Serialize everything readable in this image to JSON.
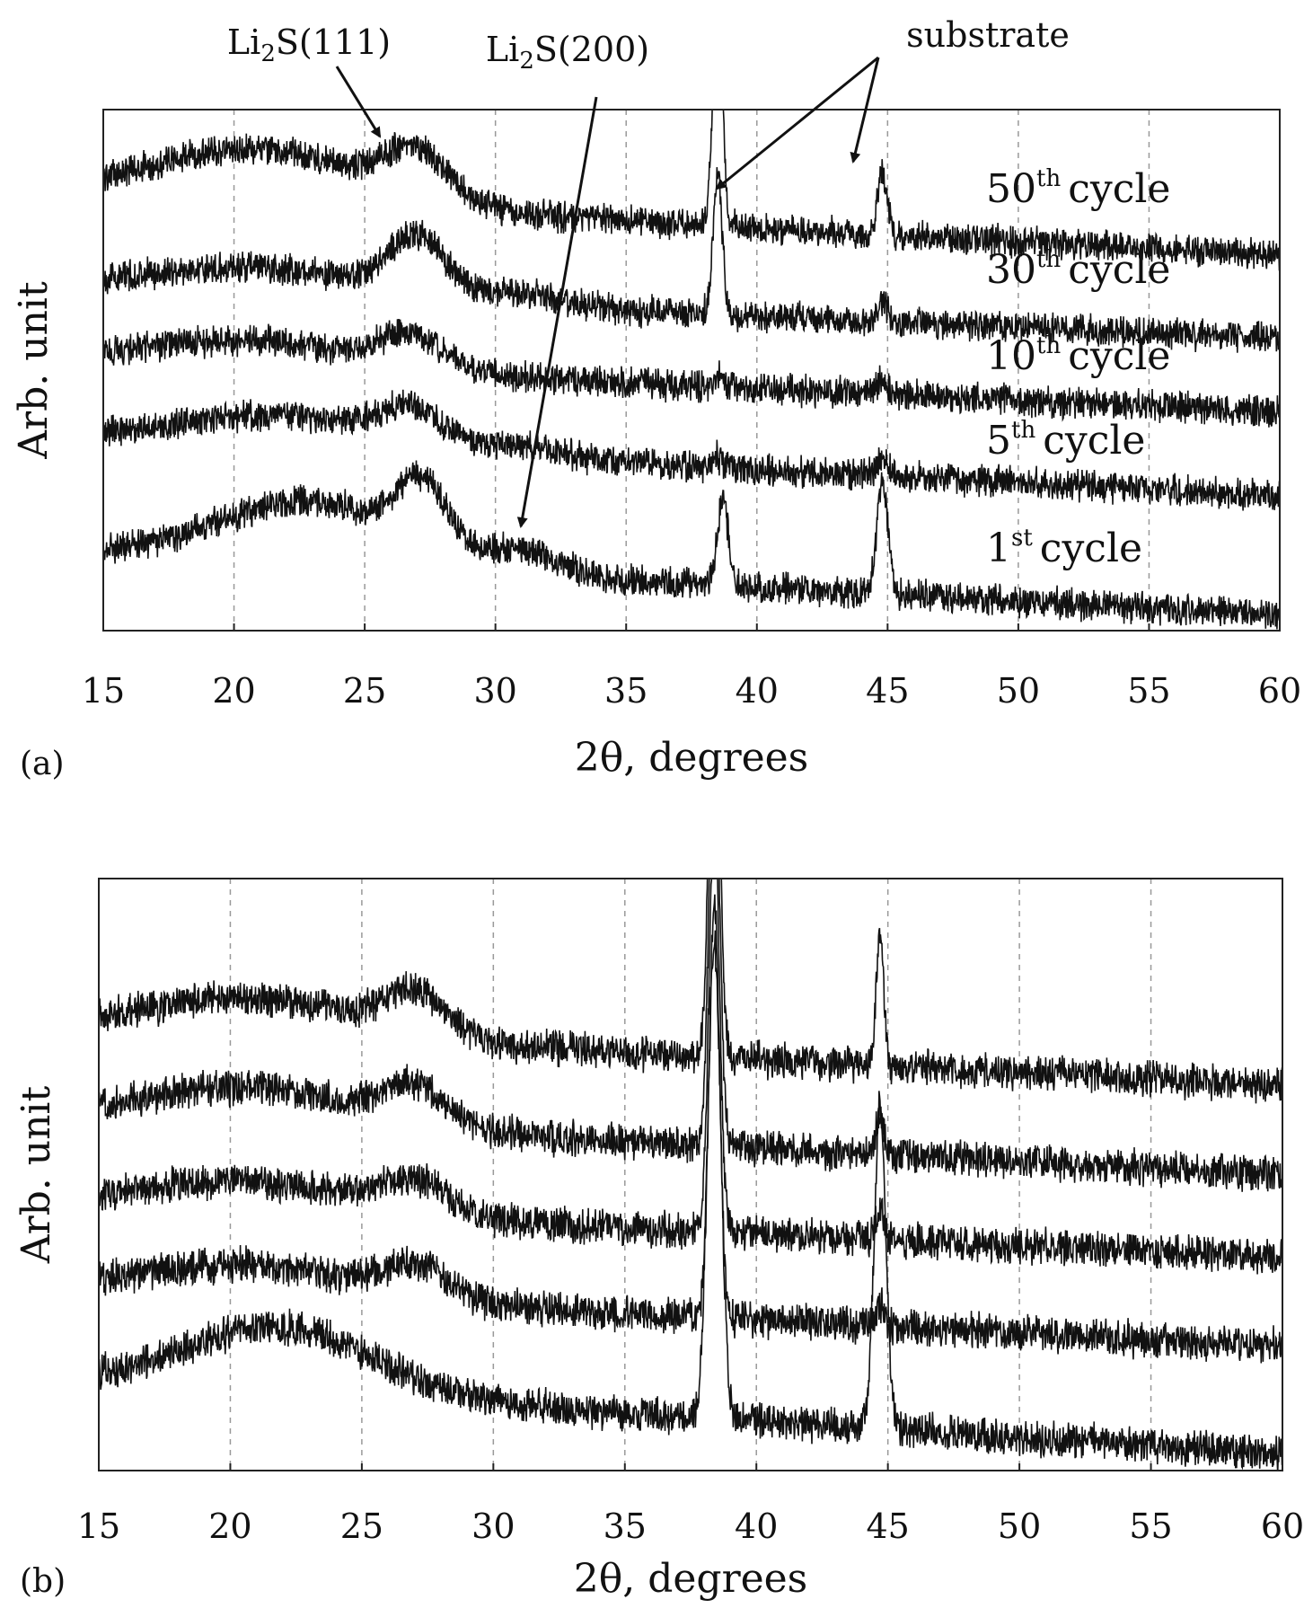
{
  "chart_data": [
    {
      "type": "line",
      "panel_label": "(a)",
      "xlabel": "2θ, degrees",
      "ylabel": "Arb. unit",
      "xlim": [
        15,
        60
      ],
      "xticks": [
        15,
        20,
        25,
        30,
        35,
        40,
        45,
        50,
        55,
        60
      ],
      "grid": "vertical dashed",
      "annotations": [
        {
          "base": "Li",
          "sub": "2",
          "rest": "S(111)",
          "points_to": {
            "x": 26.0,
            "y": 0.82
          }
        },
        {
          "base": "Li",
          "sub": "2",
          "rest": "S(200)",
          "points_to": {
            "x": 31.2,
            "y": 0.15
          }
        },
        {
          "text": "substrate",
          "points_to": [
            {
              "x": 38.5,
              "y": 0.76
            },
            {
              "x": 44.0,
              "y": 0.8
            }
          ]
        }
      ],
      "series": [
        {
          "name": "50th cycle",
          "num": "50",
          "sup": "th",
          "word": "cycle",
          "offset": 0.72,
          "slope": 0.12,
          "humps": [
            [
              21.0,
              4.0,
              0.1
            ],
            [
              27.0,
              1.2,
              0.09
            ]
          ],
          "peaks": [
            [
              38.5,
              0.18,
              0.45
            ],
            [
              44.8,
              0.18,
              0.12
            ]
          ]
        },
        {
          "name": "30th cycle",
          "num": "30",
          "sup": "th",
          "word": "cycle",
          "offset": 0.56,
          "slope": 0.1,
          "humps": [
            [
              21.0,
              4.0,
              0.05
            ],
            [
              27.0,
              1.1,
              0.11
            ],
            [
              31.0,
              1.5,
              0.02
            ]
          ],
          "peaks": [
            [
              38.5,
              0.18,
              0.26
            ],
            [
              44.8,
              0.2,
              0.04
            ]
          ]
        },
        {
          "name": "10th cycle",
          "num": "10",
          "sup": "th",
          "word": "cycle",
          "offset": 0.42,
          "slope": 0.1,
          "humps": [
            [
              21.0,
              4.0,
              0.05
            ],
            [
              26.8,
              1.2,
              0.06
            ]
          ],
          "peaks": [
            [
              38.5,
              0.18,
              0.02
            ],
            [
              44.8,
              0.2,
              0.03
            ]
          ]
        },
        {
          "name": "5th cycle",
          "num": "5",
          "sup": "th",
          "word": "cycle",
          "offset": 0.26,
          "slope": 0.11,
          "humps": [
            [
              22.0,
              4.0,
              0.06
            ],
            [
              26.8,
              1.2,
              0.06
            ],
            [
              31.0,
              1.5,
              0.02
            ]
          ],
          "peaks": [
            [
              38.5,
              0.18,
              0.02
            ],
            [
              44.8,
              0.2,
              0.03
            ]
          ]
        },
        {
          "name": "1st cycle",
          "num": "1",
          "sup": "st",
          "word": "cycle",
          "offset": 0.03,
          "slope": 0.12,
          "humps": [
            [
              23.0,
              3.5,
              0.12
            ],
            [
              27.2,
              0.9,
              0.12
            ],
            [
              31.0,
              1.5,
              0.04
            ]
          ],
          "peaks": [
            [
              38.7,
              0.2,
              0.17
            ],
            [
              44.8,
              0.22,
              0.21
            ]
          ]
        }
      ]
    },
    {
      "type": "line",
      "panel_label": "(b)",
      "xlabel": "2θ, degrees",
      "ylabel": "Arb. unit",
      "xlim": [
        15,
        60
      ],
      "xticks": [
        15,
        20,
        25,
        30,
        35,
        40,
        45,
        50,
        55,
        60
      ],
      "grid": "vertical dashed",
      "series": [
        {
          "offset": 0.65,
          "slope": 0.1,
          "humps": [
            [
              21.0,
              4.0,
              0.06
            ],
            [
              27.0,
              1.2,
              0.07
            ]
          ],
          "peaks": [
            [
              38.4,
              0.2,
              0.7
            ],
            [
              44.7,
              0.15,
              0.22
            ]
          ]
        },
        {
          "offset": 0.5,
          "slope": 0.1,
          "humps": [
            [
              21.0,
              4.0,
              0.06
            ],
            [
              27.0,
              1.2,
              0.06
            ]
          ],
          "peaks": [
            [
              38.4,
              0.2,
              0.7
            ],
            [
              44.7,
              0.15,
              0.06
            ]
          ]
        },
        {
          "offset": 0.36,
          "slope": 0.09,
          "humps": [
            [
              21.0,
              4.0,
              0.05
            ],
            [
              27.0,
              1.3,
              0.05
            ]
          ],
          "peaks": [
            [
              38.4,
              0.2,
              0.7
            ],
            [
              44.7,
              0.15,
              0.05
            ]
          ]
        },
        {
          "offset": 0.21,
          "slope": 0.1,
          "humps": [
            [
              21.0,
              4.0,
              0.05
            ],
            [
              27.0,
              1.2,
              0.05
            ]
          ],
          "peaks": [
            [
              38.4,
              0.2,
              0.7
            ],
            [
              44.7,
              0.15,
              0.04
            ]
          ]
        },
        {
          "offset": 0.03,
          "slope": 0.12,
          "humps": [
            [
              22.0,
              3.6,
              0.11
            ]
          ],
          "peaks": [
            [
              38.4,
              0.25,
              0.8
            ],
            [
              44.7,
              0.22,
              0.55
            ]
          ]
        }
      ]
    }
  ]
}
